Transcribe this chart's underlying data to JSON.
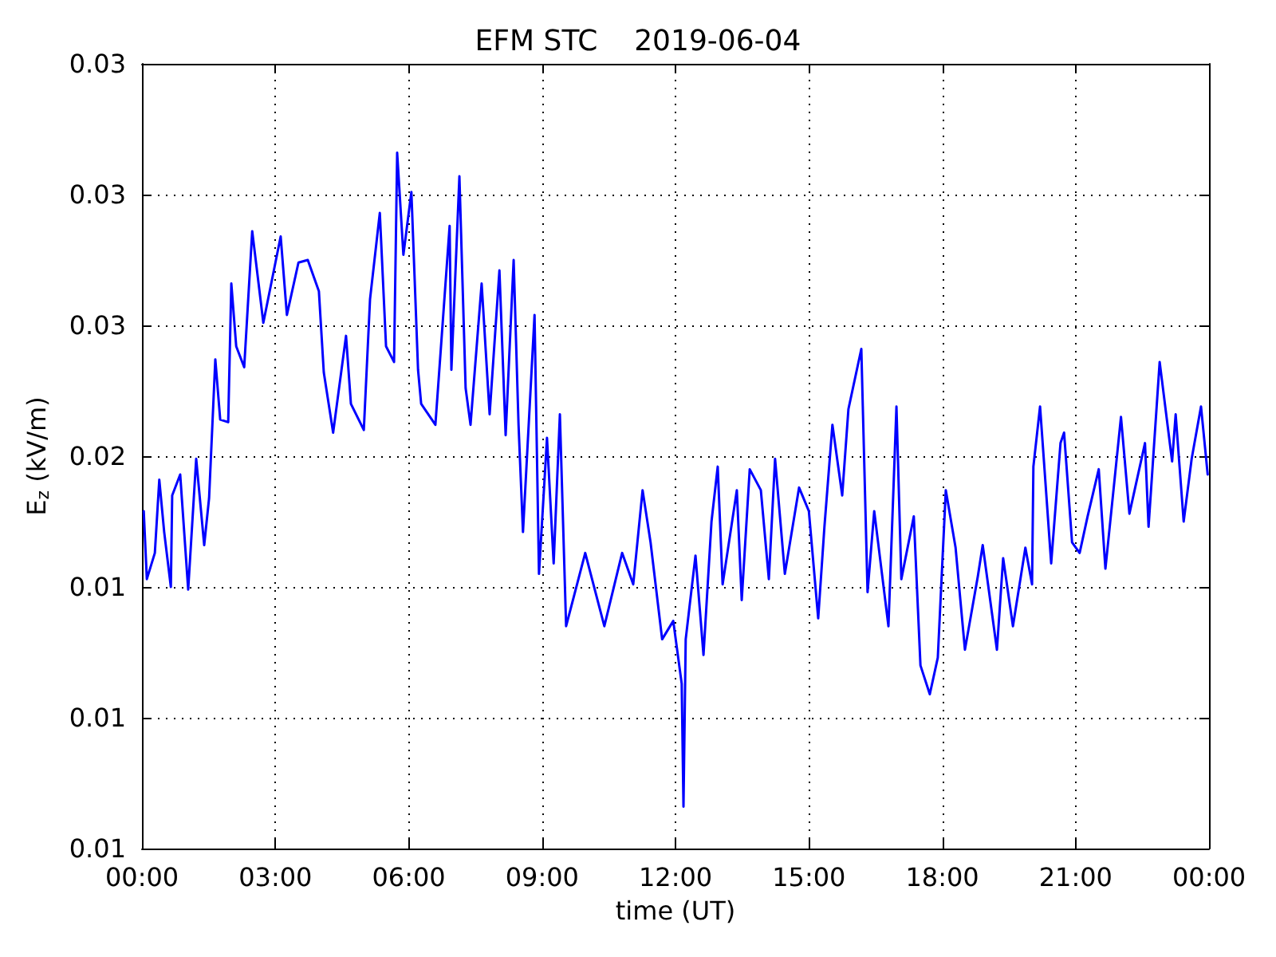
{
  "chart_data": {
    "type": "line",
    "title": "EFM STC    2019-06-04",
    "xlabel": "time (UT)",
    "ylabel": "E$_{z}$ (kV/m)",
    "xlim": [
      0,
      24
    ],
    "xticks": [
      {
        "value": 0,
        "label": "00:00"
      },
      {
        "value": 3,
        "label": "03:00"
      },
      {
        "value": 6,
        "label": "06:00"
      },
      {
        "value": 9,
        "label": "09:00"
      },
      {
        "value": 12,
        "label": "12:00"
      },
      {
        "value": 15,
        "label": "15:00"
      },
      {
        "value": 18,
        "label": "18:00"
      },
      {
        "value": 21,
        "label": "21:00"
      },
      {
        "value": 24,
        "label": "00:00"
      }
    ],
    "ylim": [
      0.005,
      0.035
    ],
    "yticks": [
      {
        "value": 0.005,
        "label": "0.01"
      },
      {
        "value": 0.01,
        "label": "0.01"
      },
      {
        "value": 0.015,
        "label": "0.01"
      },
      {
        "value": 0.02,
        "label": "0.02"
      },
      {
        "value": 0.025,
        "label": "0.03"
      },
      {
        "value": 0.03,
        "label": "0.03"
      },
      {
        "value": 0.035,
        "label": "0.03"
      }
    ],
    "grid": true,
    "marker": "none",
    "line_style": "solid",
    "series": [
      {
        "color": "#0000ff",
        "x": [
          0.04,
          0.11,
          0.29,
          0.39,
          0.5,
          0.65,
          0.68,
          0.86,
          1.04,
          1.22,
          1.4,
          1.51,
          1.65,
          1.76,
          1.94,
          2.01,
          2.12,
          2.3,
          2.48,
          2.73,
          3.12,
          3.26,
          3.52,
          3.73,
          3.98,
          4.09,
          4.3,
          4.59,
          4.7,
          4.99,
          5.13,
          5.35,
          5.49,
          5.67,
          5.74,
          5.88,
          6.06,
          6.21,
          6.28,
          6.6,
          6.92,
          6.96,
          7.14,
          7.28,
          7.39,
          7.64,
          7.82,
          8.04,
          8.18,
          8.36,
          8.47,
          8.57,
          8.83,
          8.93,
          9.11,
          9.26,
          9.4,
          9.54,
          9.97,
          10.4,
          10.8,
          11.05,
          11.26,
          11.44,
          11.7,
          11.95,
          12.14,
          12.18,
          12.23,
          12.45,
          12.63,
          12.81,
          12.95,
          13.06,
          13.38,
          13.49,
          13.67,
          13.92,
          14.1,
          14.24,
          14.46,
          14.78,
          15.0,
          15.21,
          15.35,
          15.53,
          15.75,
          15.89,
          16.18,
          16.32,
          16.47,
          16.79,
          16.97,
          17.08,
          17.36,
          17.51,
          17.72,
          17.9,
          18.08,
          18.3,
          18.51,
          18.8,
          18.91,
          19.23,
          19.37,
          19.59,
          19.87,
          20.02,
          20.05,
          20.2,
          20.45,
          20.66,
          20.74,
          20.92,
          21.09,
          21.27,
          21.52,
          21.67,
          22.02,
          22.21,
          22.56,
          22.64,
          22.89,
          23.17,
          23.25,
          23.43,
          23.61,
          23.82,
          23.97
        ],
        "values": [
          0.0179,
          0.0153,
          0.0163,
          0.0191,
          0.0171,
          0.015,
          0.0185,
          0.0193,
          0.0149,
          0.0199,
          0.0166,
          0.0184,
          0.0237,
          0.0214,
          0.0213,
          0.0266,
          0.0242,
          0.0234,
          0.0286,
          0.0251,
          0.0284,
          0.0254,
          0.0274,
          0.0275,
          0.0263,
          0.0232,
          0.0209,
          0.0246,
          0.022,
          0.021,
          0.026,
          0.0293,
          0.0242,
          0.0236,
          0.0316,
          0.0277,
          0.0301,
          0.0233,
          0.022,
          0.0212,
          0.0288,
          0.0233,
          0.0307,
          0.0226,
          0.0212,
          0.0266,
          0.0216,
          0.0271,
          0.0208,
          0.0275,
          0.0212,
          0.0171,
          0.0254,
          0.0155,
          0.0207,
          0.0159,
          0.0216,
          0.0135,
          0.0163,
          0.0135,
          0.0163,
          0.0151,
          0.0187,
          0.0167,
          0.013,
          0.0137,
          0.0113,
          0.0066,
          0.013,
          0.0162,
          0.0124,
          0.0175,
          0.0196,
          0.0151,
          0.0187,
          0.0145,
          0.0195,
          0.0187,
          0.0153,
          0.0199,
          0.0155,
          0.0188,
          0.0179,
          0.0138,
          0.0173,
          0.0212,
          0.0185,
          0.0218,
          0.0241,
          0.0148,
          0.0179,
          0.0135,
          0.0219,
          0.0153,
          0.0177,
          0.012,
          0.0109,
          0.0123,
          0.0187,
          0.0165,
          0.0126,
          0.0154,
          0.0166,
          0.0126,
          0.0161,
          0.0135,
          0.0165,
          0.0151,
          0.0196,
          0.0219,
          0.0159,
          0.0205,
          0.0209,
          0.0167,
          0.0163,
          0.0177,
          0.0195,
          0.0157,
          0.0215,
          0.0178,
          0.0205,
          0.0173,
          0.0236,
          0.0198,
          0.0216,
          0.0175,
          0.0199,
          0.0219,
          0.0193
        ]
      }
    ]
  }
}
